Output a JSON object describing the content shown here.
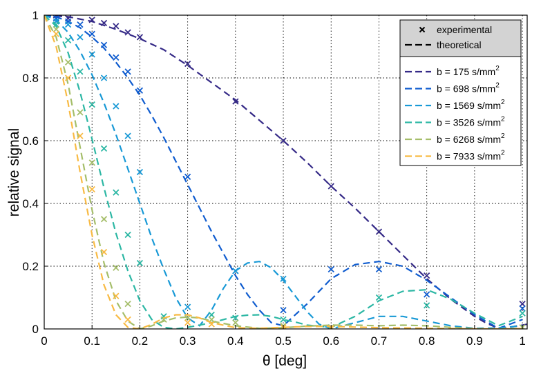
{
  "chart_data": {
    "type": "line",
    "xlabel": "θ [deg]",
    "ylabel": "relative signal",
    "xlim": [
      0,
      1.01
    ],
    "ylim": [
      0,
      1
    ],
    "x_ticks": [
      "0",
      "0.1",
      "0.2",
      "0.3",
      "0.4",
      "0.5",
      "0.6",
      "0.7",
      "0.8",
      "0.9",
      "1"
    ],
    "y_ticks": [
      "0",
      "0.2",
      "0.4",
      "0.6",
      "0.8",
      "1"
    ],
    "x_tick_values": [
      0,
      0.1,
      0.2,
      0.3,
      0.4,
      0.5,
      0.6,
      0.7,
      0.8,
      0.9,
      1.0
    ],
    "y_tick_values": [
      0,
      0.2,
      0.4,
      0.6,
      0.8,
      1.0
    ],
    "grid": true,
    "legend_placement": "top-right",
    "legend_header": [
      {
        "marker": "x",
        "label": "experimental"
      },
      {
        "marker": "dash",
        "label": "theoretical"
      }
    ],
    "series": [
      {
        "name": "b = 175 s/mm",
        "sup": "2",
        "color": "#352a87",
        "theory_x": [
          0,
          0.05,
          0.1,
          0.15,
          0.2,
          0.25,
          0.3,
          0.35,
          0.4,
          0.45,
          0.5,
          0.55,
          0.6,
          0.65,
          0.7,
          0.75,
          0.8,
          0.85,
          0.9,
          0.925,
          0.95,
          0.975,
          1.0,
          1.01
        ],
        "theory_y": [
          1.0,
          0.995,
          0.98,
          0.955,
          0.925,
          0.89,
          0.84,
          0.785,
          0.73,
          0.665,
          0.6,
          0.53,
          0.455,
          0.385,
          0.31,
          0.235,
          0.16,
          0.095,
          0.04,
          0.018,
          0.002,
          0.006,
          0.012,
          0.015
        ],
        "exp_x": [
          0.025,
          0.05,
          0.1,
          0.125,
          0.15,
          0.175,
          0.2,
          0.3,
          0.4,
          0.5,
          0.6,
          0.7,
          0.8,
          1.0
        ],
        "exp_y": [
          1.0,
          0.99,
          0.985,
          0.975,
          0.965,
          0.945,
          0.93,
          0.845,
          0.725,
          0.6,
          0.455,
          0.31,
          0.17,
          0.08
        ]
      },
      {
        "name": "b = 698 s/mm",
        "sup": "2",
        "color": "#0f5ccf",
        "theory_x": [
          0,
          0.025,
          0.05,
          0.075,
          0.1,
          0.125,
          0.15,
          0.175,
          0.2,
          0.225,
          0.25,
          0.275,
          0.3,
          0.325,
          0.35,
          0.375,
          0.4,
          0.425,
          0.45,
          0.475,
          0.5,
          0.55,
          0.6,
          0.65,
          0.7,
          0.75,
          0.8,
          0.85,
          0.9,
          0.95,
          1.0
        ],
        "theory_y": [
          1.0,
          0.995,
          0.98,
          0.96,
          0.93,
          0.895,
          0.85,
          0.8,
          0.745,
          0.68,
          0.61,
          0.535,
          0.46,
          0.385,
          0.31,
          0.24,
          0.17,
          0.11,
          0.06,
          0.02,
          0.01,
          0.08,
          0.16,
          0.205,
          0.215,
          0.2,
          0.155,
          0.1,
          0.045,
          0.002,
          0.03
        ],
        "exp_x": [
          0.025,
          0.05,
          0.075,
          0.1,
          0.125,
          0.15,
          0.175,
          0.2,
          0.3,
          0.4,
          0.5,
          0.6,
          0.7,
          0.8,
          1.0
        ],
        "exp_y": [
          0.99,
          0.98,
          0.97,
          0.94,
          0.905,
          0.865,
          0.82,
          0.76,
          0.485,
          0.185,
          0.06,
          0.19,
          0.19,
          0.11,
          0.065
        ]
      },
      {
        "name": "b = 1569 s/mm",
        "sup": "2",
        "color": "#1899d6",
        "theory_x": [
          0,
          0.025,
          0.05,
          0.075,
          0.1,
          0.125,
          0.15,
          0.175,
          0.2,
          0.225,
          0.25,
          0.275,
          0.3,
          0.325,
          0.35,
          0.375,
          0.4,
          0.425,
          0.45,
          0.475,
          0.5,
          0.525,
          0.55,
          0.575,
          0.6,
          0.65,
          0.7,
          0.75,
          0.8,
          0.85,
          0.9,
          0.95,
          1.0
        ],
        "theory_y": [
          1.0,
          0.985,
          0.945,
          0.885,
          0.81,
          0.72,
          0.62,
          0.51,
          0.4,
          0.29,
          0.19,
          0.1,
          0.035,
          0.01,
          0.06,
          0.13,
          0.185,
          0.21,
          0.215,
          0.195,
          0.155,
          0.105,
          0.055,
          0.015,
          0.0,
          0.02,
          0.04,
          0.04,
          0.025,
          0.01,
          0.002,
          0.003,
          0.01
        ],
        "exp_x": [
          0.025,
          0.05,
          0.075,
          0.1,
          0.125,
          0.15,
          0.175,
          0.2,
          0.3,
          0.4,
          0.5,
          0.6
        ],
        "exp_y": [
          0.98,
          0.97,
          0.93,
          0.875,
          0.8,
          0.71,
          0.615,
          0.5,
          0.07,
          0.185,
          0.16,
          0.005
        ]
      },
      {
        "name": "b = 3526 s/mm",
        "sup": "2",
        "color": "#2cb7a4",
        "theory_x": [
          0,
          0.025,
          0.05,
          0.075,
          0.1,
          0.125,
          0.15,
          0.175,
          0.2,
          0.225,
          0.25,
          0.275,
          0.3,
          0.325,
          0.35,
          0.375,
          0.4,
          0.425,
          0.45,
          0.475,
          0.5,
          0.525,
          0.55,
          0.6,
          0.65,
          0.7,
          0.75,
          0.8,
          0.85,
          0.9,
          0.95,
          1.0
        ],
        "theory_y": [
          1.0,
          0.965,
          0.88,
          0.755,
          0.605,
          0.45,
          0.305,
          0.185,
          0.09,
          0.03,
          0.005,
          0.0,
          0.005,
          0.012,
          0.02,
          0.03,
          0.04,
          0.044,
          0.045,
          0.04,
          0.03,
          0.022,
          0.012,
          0.005,
          0.04,
          0.09,
          0.12,
          0.125,
          0.095,
          0.05,
          0.01,
          0.04
        ],
        "exp_x": [
          0.025,
          0.05,
          0.075,
          0.1,
          0.125,
          0.15,
          0.175,
          0.2,
          0.25,
          0.3,
          0.35,
          0.4,
          0.5,
          0.6,
          0.7,
          0.8,
          1.0
        ],
        "exp_y": [
          0.97,
          0.92,
          0.82,
          0.715,
          0.575,
          0.435,
          0.3,
          0.21,
          0.04,
          0.035,
          0.045,
          0.035,
          0.03,
          0.005,
          0.1,
          0.075,
          0.05
        ]
      },
      {
        "name": "b = 6268 s/mm",
        "sup": "2",
        "color": "#a5be6a",
        "theory_x": [
          0,
          0.025,
          0.05,
          0.075,
          0.1,
          0.125,
          0.15,
          0.175,
          0.2,
          0.225,
          0.25,
          0.275,
          0.3,
          0.325,
          0.35,
          0.4,
          0.45,
          0.5,
          0.55,
          0.6,
          0.65,
          0.7,
          0.75,
          0.8,
          0.85,
          0.9,
          0.95,
          1.0
        ],
        "theory_y": [
          1.0,
          0.93,
          0.78,
          0.58,
          0.38,
          0.21,
          0.09,
          0.025,
          0.0,
          0.01,
          0.025,
          0.035,
          0.038,
          0.035,
          0.025,
          0.01,
          0.002,
          0.004,
          0.009,
          0.012,
          0.012,
          0.01,
          0.012,
          0.01,
          0.005,
          0.001,
          0.0,
          0.002
        ],
        "exp_x": [
          0.025,
          0.05,
          0.075,
          0.1,
          0.125,
          0.15,
          0.175,
          0.25,
          0.3,
          0.35,
          0.4,
          0.5,
          0.6,
          1.0
        ],
        "exp_y": [
          0.955,
          0.85,
          0.69,
          0.53,
          0.35,
          0.195,
          0.08,
          0.03,
          0.035,
          0.03,
          0.02,
          0.01,
          0.005,
          0.005
        ]
      },
      {
        "name": "b = 7933 s/mm",
        "sup": "2",
        "color": "#f8ba43",
        "theory_x": [
          0,
          0.025,
          0.05,
          0.075,
          0.1,
          0.125,
          0.15,
          0.175,
          0.2,
          0.225,
          0.25,
          0.275,
          0.3,
          0.325,
          0.35,
          0.4,
          0.45,
          0.5,
          0.55,
          0.6,
          0.65,
          0.7,
          0.75,
          0.8,
          0.85,
          0.9,
          0.95,
          1.0
        ],
        "theory_y": [
          1.0,
          0.9,
          0.72,
          0.5,
          0.3,
          0.14,
          0.045,
          0.005,
          0.0,
          0.015,
          0.035,
          0.045,
          0.045,
          0.035,
          0.02,
          0.004,
          0.002,
          0.005,
          0.008,
          0.008,
          0.006,
          0.004,
          0.003,
          0.002,
          0.001,
          0.0,
          0.0,
          0.001
        ],
        "exp_x": [
          0.025,
          0.05,
          0.075,
          0.1,
          0.125,
          0.15,
          0.175,
          0.3,
          0.35,
          0.5,
          0.6
        ],
        "exp_y": [
          0.94,
          0.8,
          0.615,
          0.445,
          0.245,
          0.105,
          0.03,
          0.02,
          0.015,
          0.005,
          0.002
        ]
      }
    ]
  }
}
